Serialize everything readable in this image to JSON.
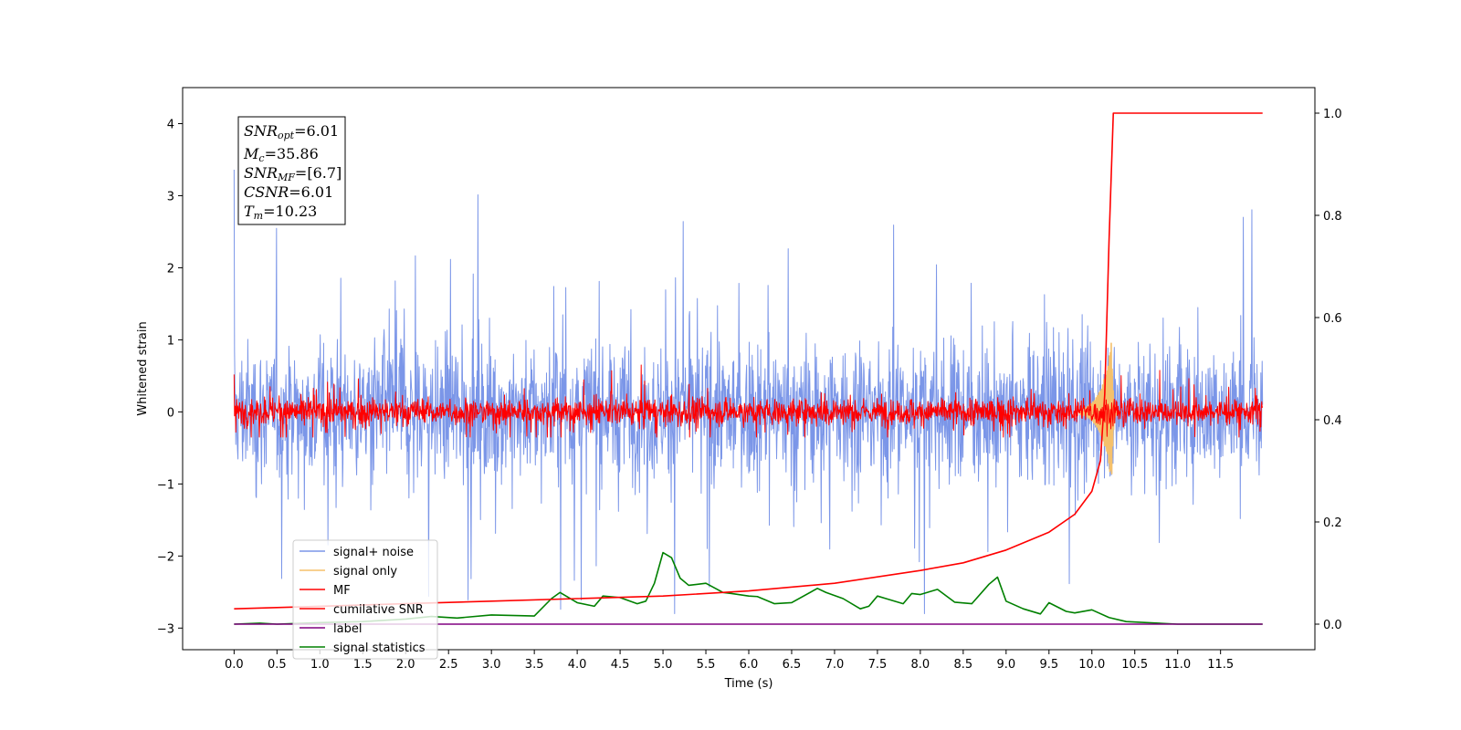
{
  "chart_data": {
    "type": "line",
    "xlabel": "Time (s)",
    "ylabel": "Whitened strain",
    "xlim": [
      -0.6,
      12.6
    ],
    "ylim": [
      -3.3,
      4.5
    ],
    "y2lim": [
      -0.05,
      1.05
    ],
    "x_ticks": [
      "0.0",
      "0.5",
      "1.0",
      "1.5",
      "2.0",
      "2.5",
      "3.0",
      "3.5",
      "4.0",
      "4.5",
      "5.0",
      "5.5",
      "6.0",
      "6.5",
      "7.0",
      "7.5",
      "8.0",
      "8.5",
      "9.0",
      "9.5",
      "10.0",
      "10.5",
      "11.0",
      "11.5"
    ],
    "y_ticks": [
      "-3",
      "-2",
      "-1",
      "0",
      "1",
      "2",
      "3",
      "4"
    ],
    "y2_ticks": [
      "0.0",
      "0.2",
      "0.4",
      "0.6",
      "0.8",
      "1.0"
    ],
    "legend_position": "lower-left",
    "annotation": {
      "snr_opt": {
        "base": "SNR",
        "sub": "opt",
        "value": "=6.01"
      },
      "mc": {
        "base": "M",
        "sub": "c",
        "value": "=35.86"
      },
      "snr_mf": {
        "base": "SNR",
        "sub": "MF",
        "value": "=[6.7]"
      },
      "csnr": {
        "base": "CSNR",
        "sub": "",
        "value": "=6.01"
      },
      "tm": {
        "base": "T",
        "sub": "m",
        "value": "=10.23"
      }
    },
    "series": [
      {
        "name": "signal+ noise",
        "color": "#7b96e8",
        "axis": "left",
        "kind": "noise",
        "std": 0.85,
        "range": [
          -2.8,
          4.2
        ]
      },
      {
        "name": "signal only",
        "color": "#f5c16c",
        "axis": "left",
        "kind": "chirp",
        "merger_time": 10.23,
        "peak": 1.0
      },
      {
        "name": "MF",
        "color": "#ff0000",
        "axis": "left",
        "kind": "noise",
        "std": 0.16,
        "range": [
          -0.35,
          0.65
        ]
      },
      {
        "name": "cumilative SNR",
        "color": "#ff0000",
        "axis": "right",
        "x": [
          0.0,
          1.0,
          2.0,
          3.0,
          4.0,
          5.0,
          6.0,
          7.0,
          8.0,
          8.5,
          9.0,
          9.5,
          9.8,
          10.0,
          10.1,
          10.15,
          10.2,
          10.25,
          11.99
        ],
        "y": [
          0.03,
          0.035,
          0.04,
          0.045,
          0.05,
          0.055,
          0.065,
          0.08,
          0.105,
          0.12,
          0.145,
          0.18,
          0.215,
          0.26,
          0.32,
          0.45,
          0.75,
          1.0,
          1.0
        ]
      },
      {
        "name": "label",
        "color": "#800080",
        "axis": "right",
        "x": [
          0.0,
          11.99
        ],
        "y": [
          0.0,
          0.0
        ]
      },
      {
        "name": "signal statistics",
        "color": "#008000",
        "axis": "right",
        "x": [
          0.0,
          0.3,
          0.5,
          1.0,
          1.5,
          2.0,
          2.3,
          2.6,
          3.0,
          3.5,
          3.7,
          3.8,
          4.0,
          4.2,
          4.3,
          4.5,
          4.7,
          4.8,
          4.9,
          5.0,
          5.1,
          5.2,
          5.3,
          5.5,
          5.7,
          5.8,
          6.0,
          6.1,
          6.3,
          6.5,
          6.8,
          6.9,
          7.1,
          7.3,
          7.4,
          7.5,
          7.6,
          7.8,
          7.9,
          8.0,
          8.2,
          8.4,
          8.6,
          8.8,
          8.9,
          9.0,
          9.2,
          9.4,
          9.5,
          9.7,
          9.8,
          10.0,
          10.2,
          10.4,
          11.0,
          11.99
        ],
        "y": [
          0.0,
          0.002,
          0.0,
          0.003,
          0.005,
          0.01,
          0.015,
          0.012,
          0.018,
          0.016,
          0.05,
          0.062,
          0.042,
          0.035,
          0.055,
          0.052,
          0.04,
          0.045,
          0.08,
          0.14,
          0.13,
          0.09,
          0.076,
          0.08,
          0.062,
          0.06,
          0.055,
          0.054,
          0.04,
          0.042,
          0.07,
          0.062,
          0.05,
          0.03,
          0.035,
          0.055,
          0.05,
          0.04,
          0.06,
          0.058,
          0.068,
          0.043,
          0.04,
          0.078,
          0.092,
          0.045,
          0.03,
          0.02,
          0.042,
          0.025,
          0.022,
          0.028,
          0.013,
          0.005,
          0.0,
          0.0
        ]
      }
    ]
  }
}
